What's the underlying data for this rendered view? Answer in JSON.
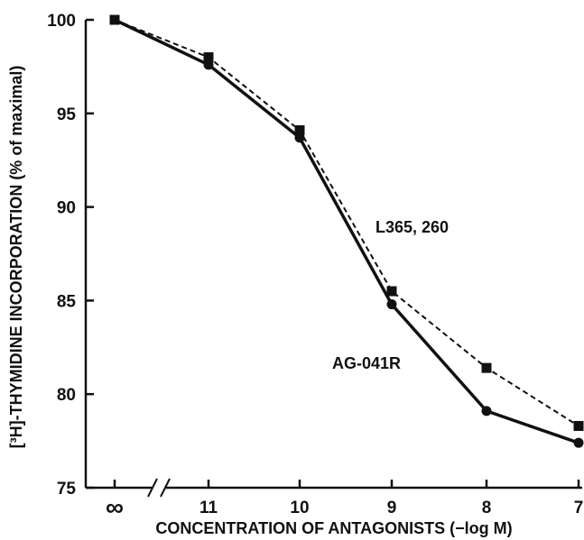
{
  "chart_data": {
    "type": "line",
    "xlabel": "CONCENTRATION OF ANTAGONISTS (−log M)",
    "ylabel": "[³H]-THYMIDINE INCORPORATION (% of maximal)",
    "x_ticks": [
      "∞",
      "11",
      "10",
      "9",
      "8",
      "7"
    ],
    "y_ticks": [
      "100",
      "95",
      "90",
      "85",
      "80",
      "75"
    ],
    "ylim": [
      75,
      100
    ],
    "axis_break": "between ∞ and 11",
    "grid": false,
    "series": [
      {
        "name": "L365, 260",
        "style": "dashed",
        "marker": "square",
        "values": [
          100,
          98.0,
          94.1,
          85.5,
          81.4,
          78.3
        ]
      },
      {
        "name": "AG-041R",
        "style": "solid",
        "marker": "circle",
        "values": [
          100,
          97.6,
          93.7,
          84.8,
          79.1,
          77.4
        ]
      }
    ]
  }
}
